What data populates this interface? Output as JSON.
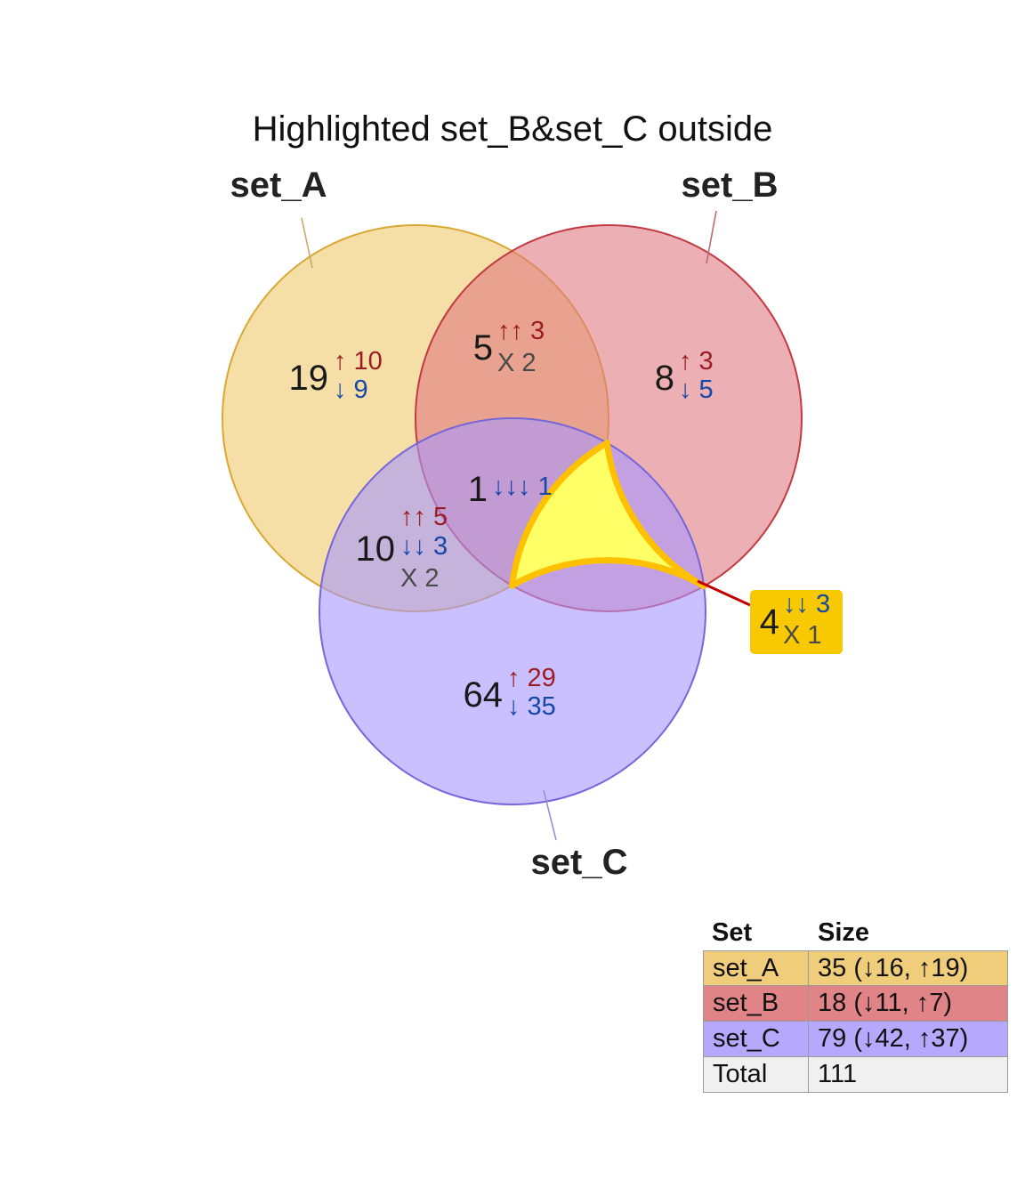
{
  "chart_data": {
    "type": "venn",
    "title": "Highlighted set_B&set_C outside",
    "sets": [
      {
        "name": "set_A",
        "fill": "#f0c96a",
        "stroke": "#d9a832",
        "leader": "#c9a86a"
      },
      {
        "name": "set_B",
        "fill": "#e07a80",
        "stroke": "#c23a42",
        "leader": "#c06a70"
      },
      {
        "name": "set_C",
        "fill": "#a796ff",
        "stroke": "#7566d9",
        "leader": "#9a90d9"
      }
    ],
    "regions": [
      {
        "id": "A_only",
        "sets": [
          "set_A"
        ],
        "total": "19",
        "lines": [
          {
            "arrows": "↑",
            "count": "10",
            "kind": "up"
          },
          {
            "arrows": "↓",
            "count": "9",
            "kind": "down"
          }
        ]
      },
      {
        "id": "B_only",
        "sets": [
          "set_B"
        ],
        "total": "8",
        "lines": [
          {
            "arrows": "↑",
            "count": "3",
            "kind": "up"
          },
          {
            "arrows": "↓",
            "count": "5",
            "kind": "down"
          }
        ]
      },
      {
        "id": "C_only",
        "sets": [
          "set_C"
        ],
        "total": "64",
        "lines": [
          {
            "arrows": "↑",
            "count": "29",
            "kind": "up"
          },
          {
            "arrows": "↓",
            "count": "35",
            "kind": "down"
          }
        ]
      },
      {
        "id": "AB",
        "sets": [
          "set_A",
          "set_B"
        ],
        "total": "5",
        "lines": [
          {
            "arrows": "↑↑",
            "count": "3",
            "kind": "up"
          },
          {
            "arrows": "X",
            "count": "2",
            "kind": "mixed"
          }
        ]
      },
      {
        "id": "AC",
        "sets": [
          "set_A",
          "set_C"
        ],
        "total": "10",
        "lines": [
          {
            "arrows": "↑↑",
            "count": "5",
            "kind": "up"
          },
          {
            "arrows": "↓↓",
            "count": "3",
            "kind": "down"
          },
          {
            "arrows": "X",
            "count": "2",
            "kind": "mixed"
          }
        ]
      },
      {
        "id": "ABC",
        "sets": [
          "set_A",
          "set_B",
          "set_C"
        ],
        "total": "1",
        "lines": [
          {
            "arrows": "↓↓↓",
            "count": "1",
            "kind": "down"
          }
        ]
      },
      {
        "id": "BC",
        "sets": [
          "set_B",
          "set_C"
        ],
        "total": "4",
        "highlighted": true,
        "outside": true,
        "lines": [
          {
            "arrows": "↓↓",
            "count": "3",
            "kind": "down"
          },
          {
            "arrows": "X",
            "count": "1",
            "kind": "mixed"
          }
        ]
      }
    ],
    "colors": {
      "up": "#9b1c22",
      "down": "#1548a8",
      "mixed": "#4a4a4a",
      "total": "#1a1a1a",
      "highlight_fill": "#ffff66",
      "highlight_stroke": "#ffc000",
      "callout_fill": "#f8c800",
      "callout_line": "#c00000"
    }
  },
  "legend": {
    "headers": [
      "Set",
      "Size"
    ],
    "rows": [
      {
        "set": "set_A",
        "size": "35 (↓16, ↑19)",
        "color": "#f0cd7a"
      },
      {
        "set": "set_B",
        "size": "18 (↓11, ↑7)",
        "color": "#e08487"
      },
      {
        "set": "set_C",
        "size": "79 (↓42, ↑37)",
        "color": "#b6a8fc"
      },
      {
        "set": "Total",
        "size": "111",
        "color": "#f0f0f0"
      }
    ]
  }
}
